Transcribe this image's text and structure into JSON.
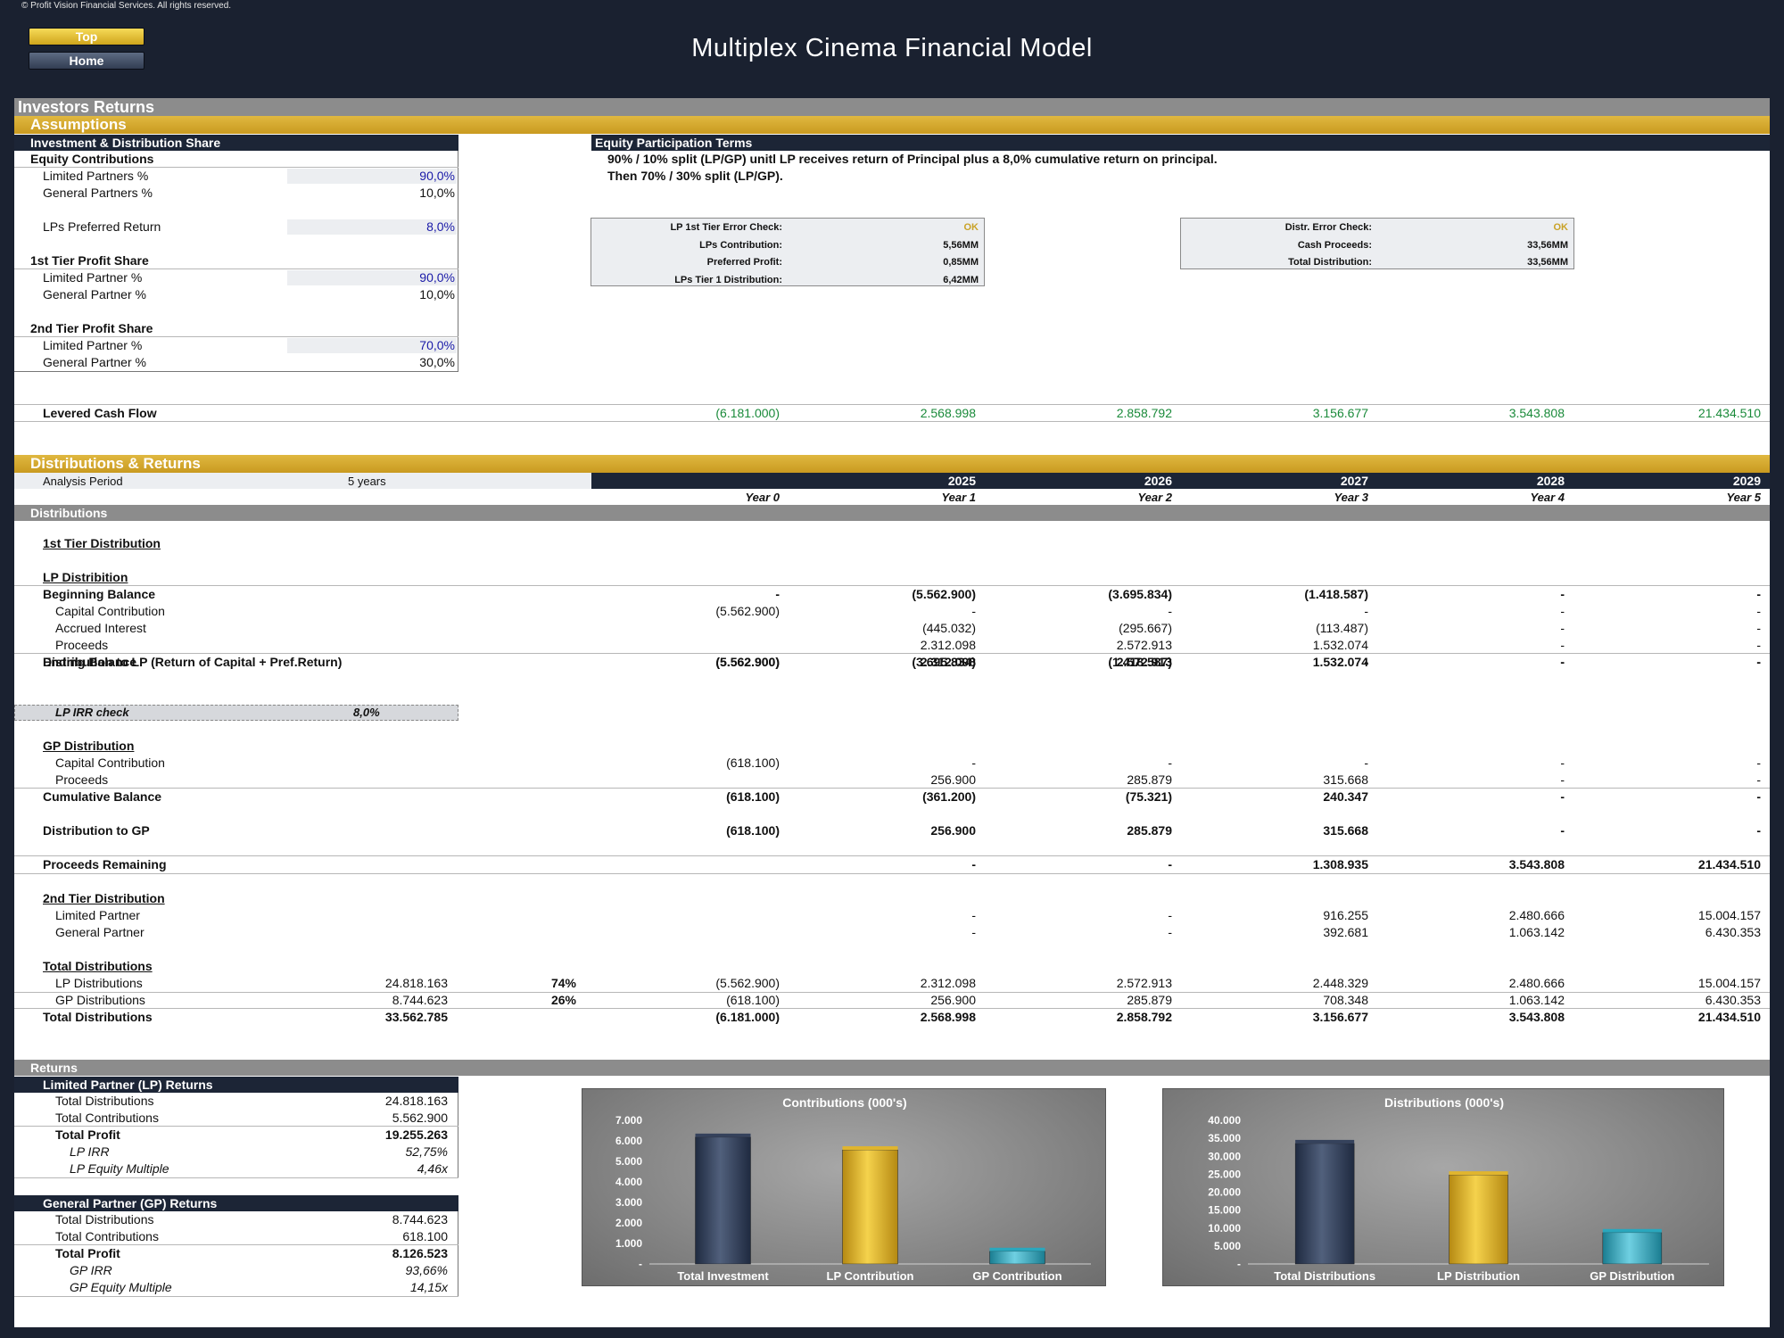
{
  "copyright": "© Profit Vision Financial Services. All rights reserved.",
  "nav": {
    "top": "Top",
    "home": "Home"
  },
  "title": "Multiplex Cinema Financial Model",
  "section_investors": "Investors Returns",
  "assumptions": {
    "header": "Assumptions",
    "inv_header": "Investment & Distribution Share",
    "equity_contrib": "Equity Contributions",
    "lp_pct_label": "Limited Partners %",
    "lp_pct": "90,0%",
    "gp_pct_label": "General Partners %",
    "gp_pct": "10,0%",
    "pref_label": "LPs Preferred Return",
    "pref": "8,0%",
    "tier1_label": "1st Tier Profit Share",
    "t1_lp_label": "Limited Partner %",
    "t1_lp": "90,0%",
    "t1_gp_label": "General Partner %",
    "t1_gp": "10,0%",
    "tier2_label": "2nd Tier Profit Share",
    "t2_lp_label": "Limited Partner %",
    "t2_lp": "70,0%",
    "t2_gp_label": "General Partner %",
    "t2_gp": "30,0%",
    "terms_header": "Equity Participation Terms",
    "terms_line1": "90% / 10% split (LP/GP) unitl LP receives return of Principal plus a 8,0% cumulative return on principal.",
    "terms_line2": "Then 70% / 30% split (LP/GP).",
    "check1": [
      {
        "label": "LP 1st Tier Error Check:",
        "value": "OK"
      },
      {
        "label": "LPs Contribution:",
        "value": "5,56MM"
      },
      {
        "label": "Preferred Profit:",
        "value": "0,85MM"
      },
      {
        "label": "LPs Tier 1 Distribution:",
        "value": "6,42MM"
      }
    ],
    "check2": [
      {
        "label": "Distr. Error Check:",
        "value": "OK"
      },
      {
        "label": "Cash Proceeds:",
        "value": "33,56MM"
      },
      {
        "label": "Total Distribution:",
        "value": "33,56MM"
      }
    ],
    "levered_label": "Levered Cash Flow",
    "levered": [
      "(6.181.000)",
      "2.568.998",
      "2.858.792",
      "3.156.677",
      "3.543.808",
      "21.434.510"
    ]
  },
  "dist": {
    "header": "Distributions & Returns",
    "analysis_label": "Analysis Period",
    "analysis_value": "5 years",
    "years": [
      "2025",
      "2026",
      "2027",
      "2028",
      "2029"
    ],
    "year_idx": [
      "Year 0",
      "Year 1",
      "Year 2",
      "Year 3",
      "Year 4",
      "Year 5"
    ],
    "distributions": "Distributions",
    "tier1": "1st Tier Distribution",
    "lp_dist": "LP Distribition",
    "rows_lp": [
      {
        "label": "Beginning Balance",
        "bold": true,
        "v": [
          "-",
          "(5.562.900)",
          "(3.695.834)",
          "(1.418.587)",
          "-",
          "-"
        ]
      },
      {
        "label": "Capital Contribution",
        "v": [
          "(5.562.900)",
          "-",
          "-",
          "-",
          "-",
          "-"
        ]
      },
      {
        "label": "Accrued Interest",
        "v": [
          "",
          "(445.032)",
          "(295.667)",
          "(113.487)",
          "-",
          "-"
        ]
      },
      {
        "label": "Proceeds",
        "v": [
          "",
          "2.312.098",
          "2.572.913",
          "1.532.074",
          "-",
          "-"
        ]
      },
      {
        "label": "Ending Balance",
        "bold": true,
        "v": [
          "(5.562.900)",
          "(3.695.834)",
          "(1.418.587)",
          "-",
          "-",
          "-"
        ]
      }
    ],
    "dist_lp": {
      "label": "Distribution to LP (Return of Capital + Pref.Return)",
      "v": [
        "(5.562.900)",
        "2.312.098",
        "2.572.913",
        "1.532.074",
        "-",
        "-"
      ]
    },
    "irr_check_label": "LP IRR check",
    "irr_check_value": "8,0%",
    "gp_dist": "GP Distribution",
    "rows_gp": [
      {
        "label": "Capital Contribution",
        "v": [
          "(618.100)",
          "-",
          "-",
          "-",
          "-",
          "-"
        ]
      },
      {
        "label": "Proceeds",
        "v": [
          "",
          "256.900",
          "285.879",
          "315.668",
          "-",
          "-"
        ]
      },
      {
        "label": "Cumulative Balance",
        "bold": true,
        "v": [
          "(618.100)",
          "(361.200)",
          "(75.321)",
          "240.347",
          "-",
          "-"
        ]
      }
    ],
    "dist_gp": {
      "label": "Distribution to GP",
      "v": [
        "(618.100)",
        "256.900",
        "285.879",
        "315.668",
        "-",
        "-"
      ]
    },
    "proceeds_rem": {
      "label": "Proceeds Remaining",
      "v": [
        "",
        "-",
        "-",
        "1.308.935",
        "3.543.808",
        "21.434.510"
      ]
    },
    "tier2": "2nd Tier Distribution",
    "rows_t2": [
      {
        "label": "Limited Partner",
        "v": [
          "",
          "-",
          "-",
          "916.255",
          "2.480.666",
          "15.004.157"
        ]
      },
      {
        "label": "General Partner",
        "v": [
          "",
          "-",
          "-",
          "392.681",
          "1.063.142",
          "6.430.353"
        ]
      }
    ],
    "total_dist_title": "Total Distributions",
    "rows_total": [
      {
        "label": "LP Distributions",
        "sum": "24.818.163",
        "pct": "74%",
        "v": [
          "(5.562.900)",
          "2.312.098",
          "2.572.913",
          "2.448.329",
          "2.480.666",
          "15.004.157"
        ]
      },
      {
        "label": "GP Distributions",
        "sum": "8.744.623",
        "pct": "26%",
        "v": [
          "(618.100)",
          "256.900",
          "285.879",
          "708.348",
          "1.063.142",
          "6.430.353"
        ]
      },
      {
        "label": "Total Distributions",
        "bold": true,
        "sum": "33.562.785",
        "pct": "",
        "v": [
          "(6.181.000)",
          "2.568.998",
          "2.858.792",
          "3.156.677",
          "3.543.808",
          "21.434.510"
        ]
      }
    ]
  },
  "returns": {
    "header": "Returns",
    "lp": {
      "title": "Limited Partner (LP) Returns",
      "rows": [
        {
          "label": "Total Distributions",
          "value": "24.818.163"
        },
        {
          "label": "Total Contributions",
          "value": "5.562.900"
        },
        {
          "label": "Total Profit",
          "value": "19.255.263",
          "bold": true
        },
        {
          "label": "LP IRR",
          "value": "52,75%",
          "italic": true
        },
        {
          "label": "LP Equity Multiple",
          "value": "4,46x",
          "italic": true
        }
      ]
    },
    "gp": {
      "title": "General Partner (GP) Returns",
      "rows": [
        {
          "label": "Total Distributions",
          "value": "8.744.623"
        },
        {
          "label": "Total Contributions",
          "value": "618.100"
        },
        {
          "label": "Total Profit",
          "value": "8.126.523",
          "bold": true
        },
        {
          "label": "GP IRR",
          "value": "93,66%",
          "italic": true
        },
        {
          "label": "GP Equity Multiple",
          "value": "14,15x",
          "italic": true
        }
      ]
    }
  },
  "colors": {
    "navy": "#1c2536",
    "gold": "#d9ad2c",
    "teal": "#2aa7bd",
    "green": "#1a8a3a",
    "blue": "#1a1aa8"
  },
  "chart_data": [
    {
      "type": "bar",
      "title": "Contributions (000's)",
      "categories": [
        "Total Investment",
        "LP Contribution",
        "GP Contribution"
      ],
      "values": [
        6181,
        5563,
        618
      ],
      "ylim": [
        0,
        7000
      ],
      "yticks": [
        "-",
        "1.000",
        "2.000",
        "3.000",
        "4.000",
        "5.000",
        "6.000",
        "7.000"
      ],
      "legend": "none"
    },
    {
      "type": "bar",
      "title": "Distributions (000's)",
      "categories": [
        "Total Distributions",
        "LP Distribution",
        "GP Distribution"
      ],
      "values": [
        33563,
        24818,
        8745
      ],
      "ylim": [
        0,
        40000
      ],
      "yticks": [
        "-",
        "5.000",
        "10.000",
        "15.000",
        "20.000",
        "25.000",
        "30.000",
        "35.000",
        "40.000"
      ],
      "legend": "none"
    }
  ]
}
